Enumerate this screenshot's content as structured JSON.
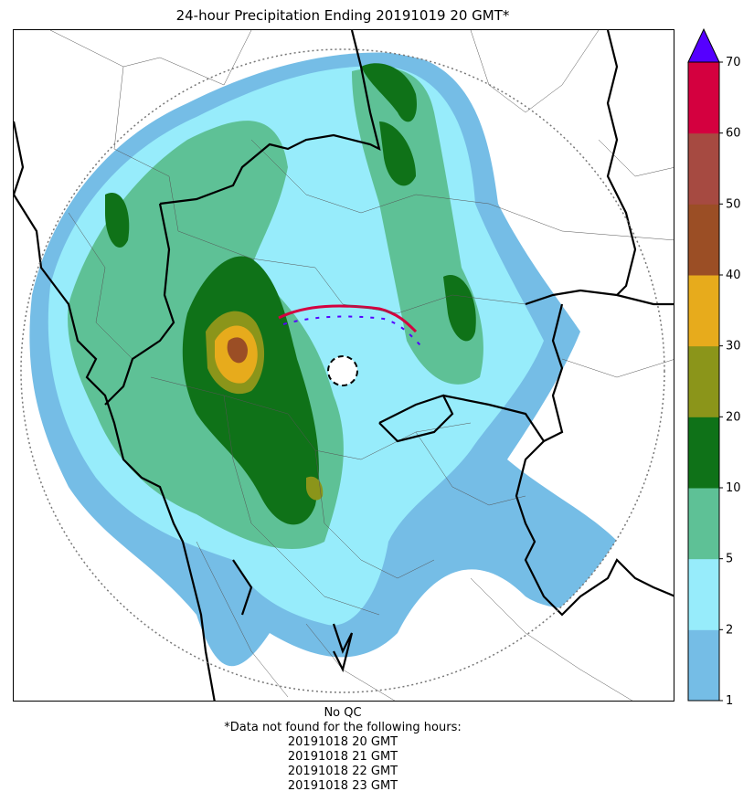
{
  "title": "24-hour Precipitation Ending 20191019 20 GMT*",
  "colorbar": {
    "levels": [
      1,
      2,
      5,
      10,
      20,
      30,
      40,
      50,
      60,
      70
    ],
    "tick_labels": [
      "1",
      "2",
      "5",
      "10",
      "20",
      "30",
      "40",
      "50",
      "60",
      "70"
    ],
    "colors": [
      "#75bde6",
      "#97ecfb",
      "#5ec196",
      "#0f7218",
      "#8b951a",
      "#e7ab1c",
      "#9b4e25",
      "#a64a41",
      "#d4003f"
    ],
    "extend_color": "#5500ff"
  },
  "footer": {
    "qc_status": "No QC",
    "missing_note": "*Data not found for the following hours:",
    "missing_hours": [
      "20191018 20 GMT",
      "20191018 21 GMT",
      "20191018 22 GMT",
      "20191018 23 GMT"
    ]
  }
}
